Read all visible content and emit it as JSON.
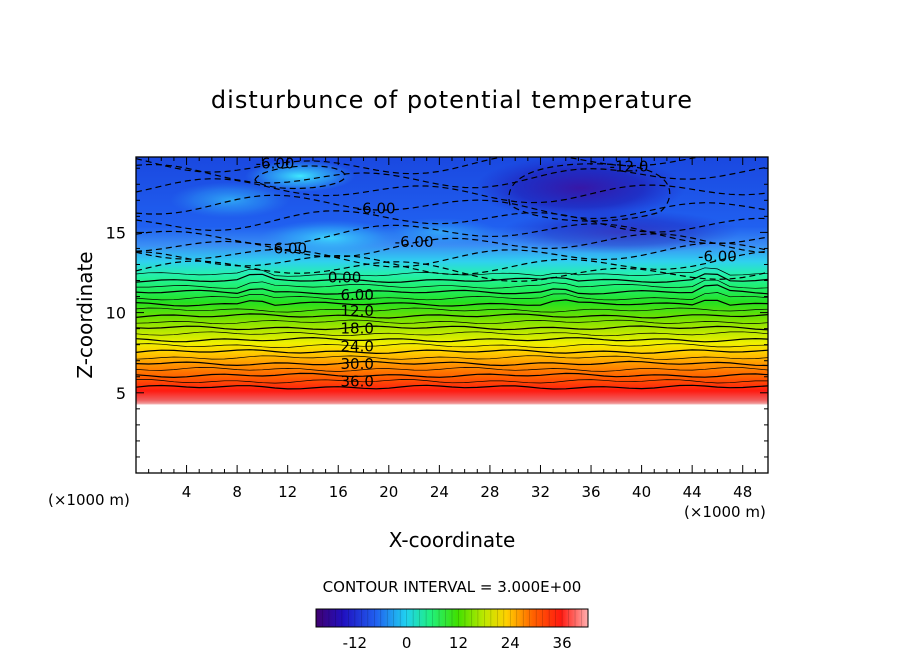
{
  "chart_data": {
    "type": "contour",
    "title": "disturbunce of potential temperature",
    "xlabel": "X-coordinate",
    "ylabel": "Z-coordinate",
    "x_unit": "(×1000 m)",
    "y_unit": "(×1000 m)",
    "xlim": [
      0,
      50
    ],
    "ylim": [
      0,
      19.7
    ],
    "x_ticks": [
      4,
      8,
      12,
      16,
      20,
      24,
      28,
      32,
      36,
      40,
      44,
      48
    ],
    "y_ticks": [
      5,
      10,
      15
    ],
    "data_bottom_z": 5,
    "contour_interval_text": "CONTOUR INTERVAL = 3.000E+00",
    "contour_interval": 3,
    "contour_labels": [
      {
        "text": "-6.00",
        "x": 11,
        "z": 19.3
      },
      {
        "text": "-12.0",
        "x": 39,
        "z": 19.1
      },
      {
        "text": "-6.00",
        "x": 19,
        "z": 16.5
      },
      {
        "text": "-6.00",
        "x": 12,
        "z": 14.0
      },
      {
        "text": "-6.00",
        "x": 22,
        "z": 14.4
      },
      {
        "text": "-6.00",
        "x": 46,
        "z": 13.5
      },
      {
        "text": "0.00",
        "x": 16.5,
        "z": 12.2
      },
      {
        "text": "6.00",
        "x": 17.5,
        "z": 11.1
      },
      {
        "text": "12.0",
        "x": 17.5,
        "z": 10.1
      },
      {
        "text": "18.0",
        "x": 17.5,
        "z": 9.0
      },
      {
        "text": "24.0",
        "x": 17.5,
        "z": 7.9
      },
      {
        "text": "30.0",
        "x": 17.5,
        "z": 6.8
      },
      {
        "text": "36.0",
        "x": 17.5,
        "z": 5.7
      }
    ],
    "colorbar": {
      "min": -21,
      "max": 42,
      "tick_labels": [
        "-12",
        "0",
        "12",
        "24",
        "36"
      ],
      "tick_values": [
        -12,
        0,
        12,
        24,
        36
      ]
    }
  }
}
